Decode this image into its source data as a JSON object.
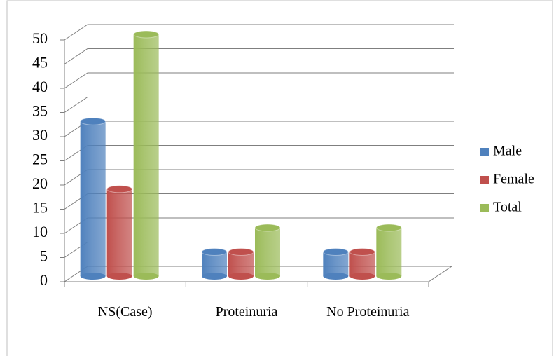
{
  "chart_data": {
    "type": "bar3d",
    "categories": [
      "NS(Case)",
      "Proteinuria",
      "No Proteinuria"
    ],
    "series": [
      {
        "name": "Male",
        "color": "#4f81bd",
        "values": [
          32,
          5,
          5
        ]
      },
      {
        "name": "Female",
        "color": "#c0504d",
        "values": [
          18,
          5,
          5
        ]
      },
      {
        "name": "Total",
        "color": "#9bbb59",
        "values": [
          50,
          10,
          10
        ]
      }
    ],
    "ylim": [
      0,
      50
    ],
    "yticks": [
      0,
      5,
      10,
      15,
      20,
      25,
      30,
      35,
      40,
      45,
      50
    ],
    "grid": true,
    "legend": "right"
  }
}
